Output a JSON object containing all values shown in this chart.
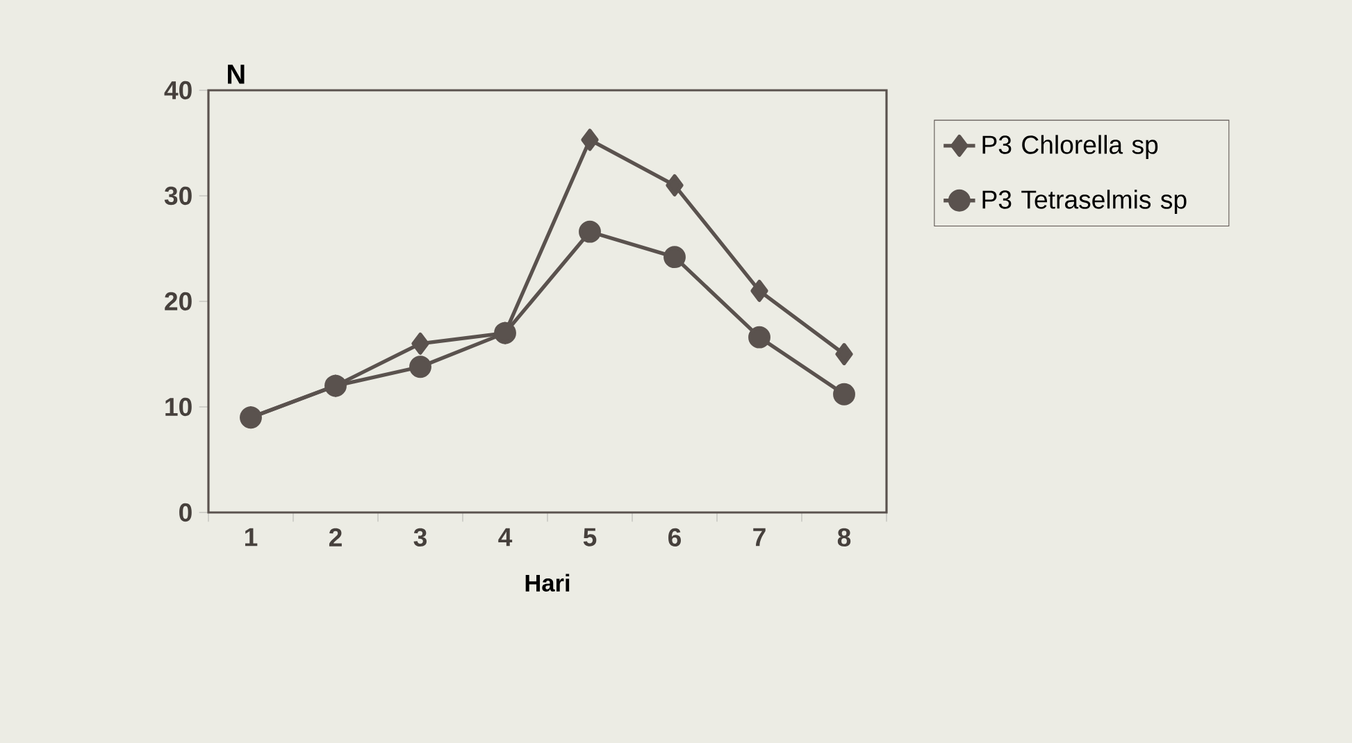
{
  "chart_data": {
    "type": "line",
    "xlabel": "Hari",
    "ylabel": "N",
    "categories": [
      "1",
      "2",
      "3",
      "4",
      "5",
      "6",
      "7",
      "8"
    ],
    "series": [
      {
        "name": "P3 Chlorella sp",
        "color": "#5a524e",
        "marker": "diamond",
        "values": [
          9,
          12,
          16,
          17,
          35.3,
          31,
          21,
          15
        ]
      },
      {
        "name": "P3 Tetraselmis sp",
        "color": "#5a524e",
        "marker": "circle",
        "values": [
          9,
          12,
          13.8,
          17,
          26.6,
          24.2,
          16.6,
          11.2
        ]
      }
    ],
    "ylim": [
      0,
      40
    ],
    "yticks": [
      0,
      10,
      20,
      30,
      40
    ],
    "grid": false,
    "legend": "right",
    "line_style": "solid"
  }
}
